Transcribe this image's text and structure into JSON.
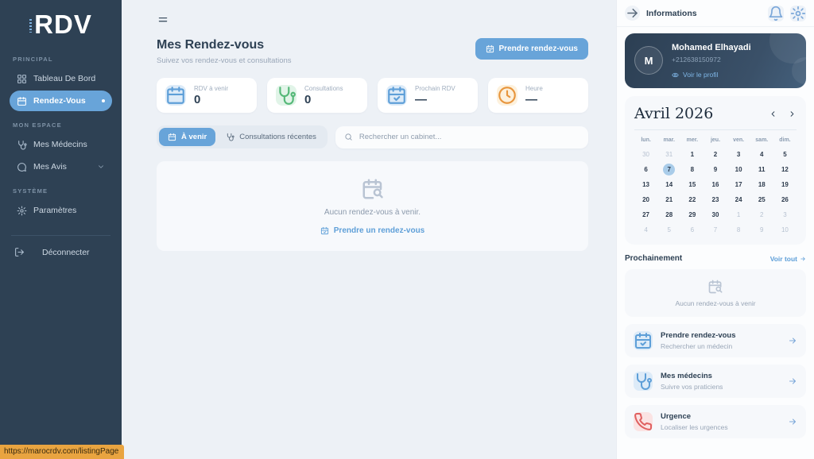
{
  "sidebar": {
    "logo": "RDV",
    "sections": [
      {
        "label": "PRINCIPAL",
        "items": [
          {
            "label": "Tableau De Bord",
            "icon": "grid",
            "active": false
          },
          {
            "label": "Rendez-Vous",
            "icon": "calendar",
            "active": true
          }
        ]
      },
      {
        "label": "MON ESPACE",
        "items": [
          {
            "label": "Mes Médecins",
            "icon": "stethoscope",
            "active": false
          },
          {
            "label": "Mes Avis",
            "icon": "chat",
            "active": false,
            "chevron": true
          }
        ]
      },
      {
        "label": "SYSTÈME",
        "items": [
          {
            "label": "Paramètres",
            "icon": "gear",
            "active": false
          }
        ]
      }
    ],
    "logout_label": "Déconnecter"
  },
  "status_bar": {
    "url": "https://marocrdv.com/listingPage"
  },
  "main": {
    "title": "Mes Rendez-vous",
    "subtitle": "Suivez vos rendez-vous et consultations",
    "primary_button": "Prendre rendez-vous",
    "stats": [
      {
        "label": "RDV à venir",
        "value": "0",
        "icon": "calendar",
        "tone": "blue"
      },
      {
        "label": "Consultations",
        "value": "0",
        "icon": "stethoscope",
        "tone": "green"
      },
      {
        "label": "Prochain RDV",
        "value": "—",
        "icon": "calendar-check",
        "tone": "blue"
      },
      {
        "label": "Heure",
        "value": "—",
        "icon": "clock",
        "tone": "orange"
      }
    ],
    "tabs": [
      {
        "label": "À venir",
        "icon": "calendar",
        "active": true
      },
      {
        "label": "Consultations récentes",
        "icon": "stethoscope",
        "active": false
      }
    ],
    "search_placeholder": "Rechercher un cabinet...",
    "empty_state": {
      "message": "Aucun rendez-vous à venir.",
      "action_label": "Prendre un rendez-vous"
    }
  },
  "right_panel": {
    "header_title": "Informations",
    "profile": {
      "initial": "M",
      "name": "Mohamed Elhayadi",
      "phone": "+212638150972",
      "link_label": "Voir le profil"
    },
    "calendar": {
      "month_label": "Avril 2026",
      "day_headers": [
        "lun.",
        "mar.",
        "mer.",
        "jeu.",
        "ven.",
        "sam.",
        "dim."
      ],
      "days": [
        {
          "d": "30",
          "muted": true
        },
        {
          "d": "31",
          "muted": true
        },
        {
          "d": "1"
        },
        {
          "d": "2"
        },
        {
          "d": "3"
        },
        {
          "d": "4"
        },
        {
          "d": "5"
        },
        {
          "d": "6"
        },
        {
          "d": "7",
          "selected": true
        },
        {
          "d": "8"
        },
        {
          "d": "9"
        },
        {
          "d": "10"
        },
        {
          "d": "11"
        },
        {
          "d": "12"
        },
        {
          "d": "13"
        },
        {
          "d": "14"
        },
        {
          "d": "15"
        },
        {
          "d": "16"
        },
        {
          "d": "17"
        },
        {
          "d": "18"
        },
        {
          "d": "19"
        },
        {
          "d": "20"
        },
        {
          "d": "21"
        },
        {
          "d": "22"
        },
        {
          "d": "23"
        },
        {
          "d": "24"
        },
        {
          "d": "25"
        },
        {
          "d": "26"
        },
        {
          "d": "27"
        },
        {
          "d": "28"
        },
        {
          "d": "29"
        },
        {
          "d": "30"
        },
        {
          "d": "1",
          "muted": true
        },
        {
          "d": "2",
          "muted": true
        },
        {
          "d": "3",
          "muted": true
        },
        {
          "d": "4",
          "muted": true
        },
        {
          "d": "5",
          "muted": true
        },
        {
          "d": "6",
          "muted": true
        },
        {
          "d": "7",
          "muted": true
        },
        {
          "d": "8",
          "muted": true
        },
        {
          "d": "9",
          "muted": true
        },
        {
          "d": "10",
          "muted": true
        }
      ]
    },
    "upcoming": {
      "title": "Prochainement",
      "link_label": "Voir tout",
      "empty_message": "Aucun rendez-vous à venir"
    },
    "actions": [
      {
        "title": "Prendre rendez-vous",
        "subtitle": "Rechercher un médecin",
        "icon": "calendar-check",
        "tone": "blue"
      },
      {
        "title": "Mes médecins",
        "subtitle": "Suivre vos praticiens",
        "icon": "stethoscope",
        "tone": "blue"
      },
      {
        "title": "Urgence",
        "subtitle": "Localiser les urgences",
        "icon": "phone",
        "tone": "red"
      }
    ]
  },
  "colors": {
    "sidebar_bg": "#2e4154",
    "accent_blue": "#68a4d9",
    "link_blue": "#5e9fd8",
    "tooltip_orange": "#e9a440",
    "selected_day_bg": "#a9cce9"
  }
}
